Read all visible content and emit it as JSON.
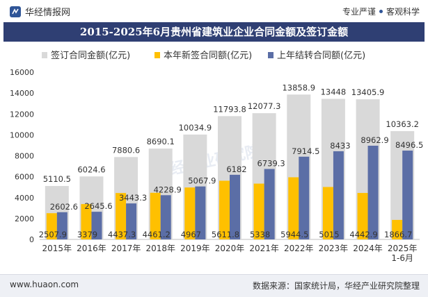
{
  "header": {
    "brand": "华经情报网",
    "tag1": "专业严谨",
    "tag2": "客观科学"
  },
  "title": "2015-2025年6月贵州省建筑业企业合同金额及签订金额",
  "footer": {
    "url": "www.huaon.com",
    "source": "数据来源：国家统计局，华经产业研究院整理"
  },
  "watermark": "华经产业研究院",
  "colors": {
    "total": "#d9d9d9",
    "new": "#ffc000",
    "carry": "#5b6ea6",
    "title_bg": "#2f3f73"
  },
  "chart_data": {
    "type": "bar",
    "categories": [
      "2015年",
      "2016年",
      "2017年",
      "2018年",
      "2019年",
      "2020年",
      "2021年",
      "2022年",
      "2023年",
      "2024年",
      "2025年\n1-6月"
    ],
    "series": [
      {
        "name": "签订合同金额(亿元)",
        "values": [
          5110.5,
          6024.6,
          7880.6,
          8690.1,
          10034.9,
          11793.8,
          12077.3,
          13858.9,
          13448,
          13405.9,
          10363.2
        ]
      },
      {
        "name": "本年新签合同额(亿元)",
        "values": [
          2507.9,
          3379,
          4437.3,
          4461.2,
          4967,
          5611.8,
          5338,
          5944.5,
          5015,
          4442.9,
          1866.7
        ]
      },
      {
        "name": "上年结转合同额(亿元)",
        "values": [
          2602.6,
          2645.6,
          3443.3,
          4228.9,
          5067.9,
          6182,
          6739.3,
          7914.5,
          8433,
          8962.9,
          8496.5
        ]
      }
    ],
    "ylim": [
      0,
      16000
    ],
    "yticks": [
      0,
      2000,
      4000,
      6000,
      8000,
      10000,
      12000,
      14000,
      16000
    ],
    "legend_position": "top"
  }
}
